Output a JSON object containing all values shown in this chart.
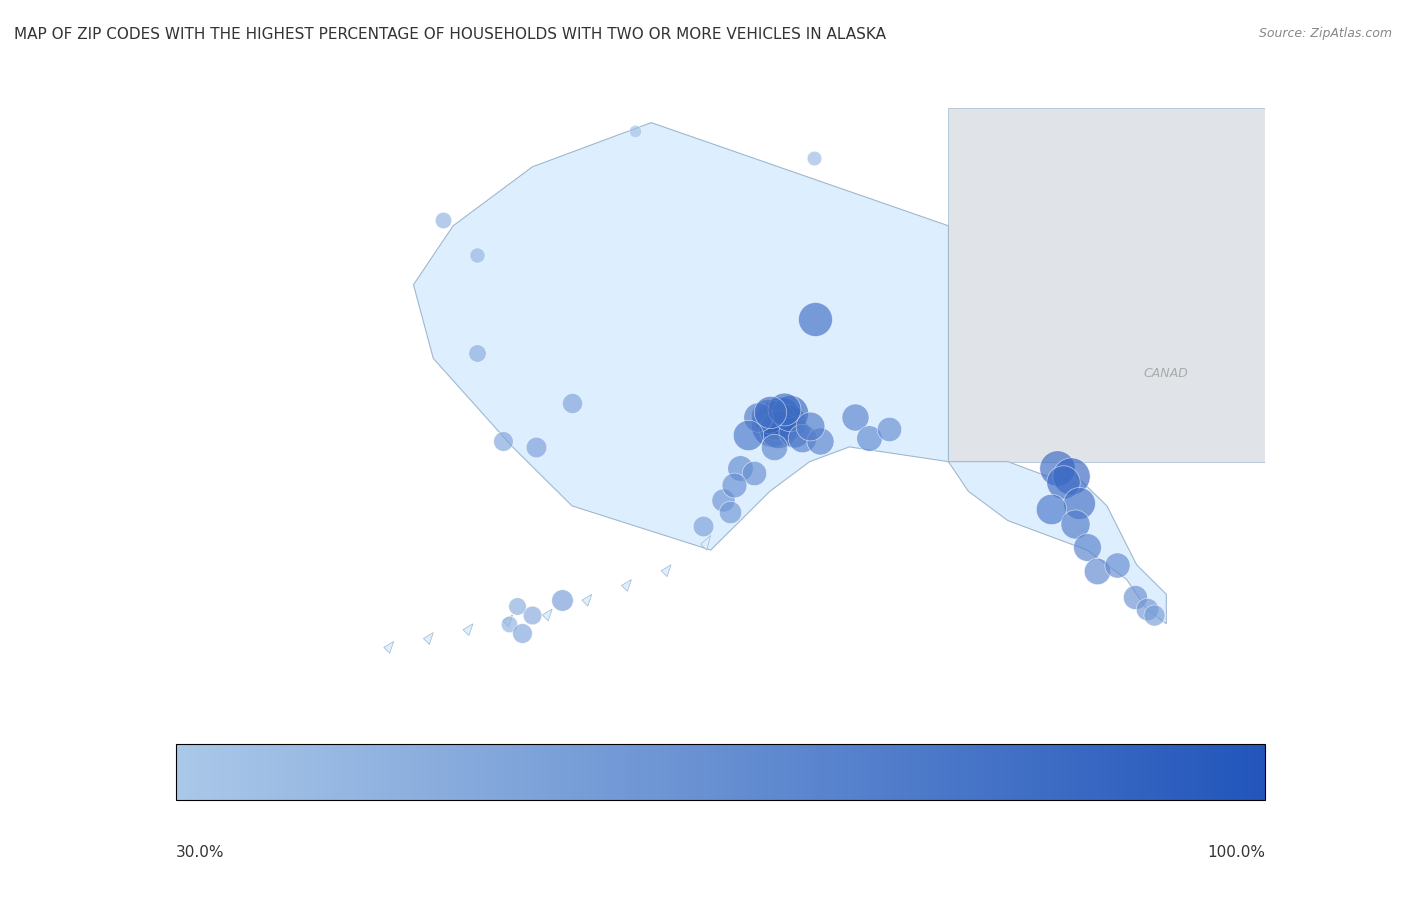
{
  "title": "MAP OF ZIP CODES WITH THE HIGHEST PERCENTAGE OF HOUSEHOLDS WITH TWO OR MORE VEHICLES IN ALASKA",
  "source": "Source: ZipAtlas.com",
  "colorbar_min": 30.0,
  "colorbar_max": 100.0,
  "colorbar_label_min": "30.0%",
  "colorbar_label_max": "100.0%",
  "bg_color": "#f0f4f8",
  "map_fill_color": "#ddeeff",
  "map_edge_color": "#a0b8cc",
  "ocean_color": "#dde8f0",
  "title_fontsize": 11,
  "source_fontsize": 9,
  "bubble_color_low": "#aac8e8",
  "bubble_color_high": "#2255bb",
  "bubbles": [
    {
      "lon": -147.72,
      "lat": 64.84,
      "pct": 85,
      "size": 600
    },
    {
      "lon": -149.9,
      "lat": 61.22,
      "pct": 95,
      "size": 900
    },
    {
      "lon": -149.44,
      "lat": 61.59,
      "pct": 90,
      "size": 700
    },
    {
      "lon": -149.1,
      "lat": 61.35,
      "pct": 88,
      "size": 650
    },
    {
      "lon": -149.75,
      "lat": 61.4,
      "pct": 92,
      "size": 800
    },
    {
      "lon": -150.1,
      "lat": 61.55,
      "pct": 87,
      "size": 600
    },
    {
      "lon": -149.6,
      "lat": 61.1,
      "pct": 93,
      "size": 750
    },
    {
      "lon": -148.8,
      "lat": 61.0,
      "pct": 82,
      "size": 500
    },
    {
      "lon": -149.0,
      "lat": 61.65,
      "pct": 89,
      "size": 680
    },
    {
      "lon": -150.6,
      "lat": 61.5,
      "pct": 78,
      "size": 450
    },
    {
      "lon": -151.1,
      "lat": 60.9,
      "pct": 80,
      "size": 480
    },
    {
      "lon": -148.4,
      "lat": 60.8,
      "pct": 75,
      "size": 420
    },
    {
      "lon": -149.3,
      "lat": 61.8,
      "pct": 86,
      "size": 560
    },
    {
      "lon": -150.0,
      "lat": 61.7,
      "pct": 84,
      "size": 540
    },
    {
      "lon": -147.5,
      "lat": 60.7,
      "pct": 72,
      "size": 380
    },
    {
      "lon": -148.0,
      "lat": 61.2,
      "pct": 76,
      "size": 430
    },
    {
      "lon": -149.8,
      "lat": 60.5,
      "pct": 70,
      "size": 360
    },
    {
      "lon": -151.5,
      "lat": 59.8,
      "pct": 68,
      "size": 340
    },
    {
      "lon": -150.8,
      "lat": 59.6,
      "pct": 65,
      "size": 310
    },
    {
      "lon": -152.4,
      "lat": 58.7,
      "pct": 62,
      "size": 280
    },
    {
      "lon": -151.8,
      "lat": 59.2,
      "pct": 66,
      "size": 320
    },
    {
      "lon": -152.0,
      "lat": 58.3,
      "pct": 60,
      "size": 260
    },
    {
      "lon": -153.4,
      "lat": 57.8,
      "pct": 55,
      "size": 220
    },
    {
      "lon": -162.0,
      "lat": 54.8,
      "pct": 50,
      "size": 180
    },
    {
      "lon": -162.8,
      "lat": 55.1,
      "pct": 48,
      "size": 160
    },
    {
      "lon": -163.2,
      "lat": 54.5,
      "pct": 45,
      "size": 140
    },
    {
      "lon": -162.5,
      "lat": 54.2,
      "pct": 52,
      "size": 200
    },
    {
      "lon": -160.5,
      "lat": 55.3,
      "pct": 58,
      "size": 240
    },
    {
      "lon": -161.8,
      "lat": 60.5,
      "pct": 55,
      "size": 220
    },
    {
      "lon": -163.5,
      "lat": 60.7,
      "pct": 52,
      "size": 200
    },
    {
      "lon": -164.8,
      "lat": 63.7,
      "pct": 48,
      "size": 160
    },
    {
      "lon": -160.0,
      "lat": 62.0,
      "pct": 53,
      "size": 210
    },
    {
      "lon": -145.7,
      "lat": 61.5,
      "pct": 72,
      "size": 380
    },
    {
      "lon": -145.0,
      "lat": 60.8,
      "pct": 68,
      "size": 340
    },
    {
      "lon": -144.0,
      "lat": 61.1,
      "pct": 65,
      "size": 310
    },
    {
      "lon": -135.5,
      "lat": 59.8,
      "pct": 88,
      "size": 650
    },
    {
      "lon": -134.8,
      "lat": 59.5,
      "pct": 91,
      "size": 720
    },
    {
      "lon": -135.2,
      "lat": 59.3,
      "pct": 86,
      "size": 580
    },
    {
      "lon": -134.4,
      "lat": 58.6,
      "pct": 83,
      "size": 530
    },
    {
      "lon": -135.8,
      "lat": 58.4,
      "pct": 80,
      "size": 480
    },
    {
      "lon": -134.6,
      "lat": 57.9,
      "pct": 77,
      "size": 440
    },
    {
      "lon": -134.0,
      "lat": 57.1,
      "pct": 74,
      "size": 400
    },
    {
      "lon": -133.5,
      "lat": 56.3,
      "pct": 70,
      "size": 360
    },
    {
      "lon": -132.5,
      "lat": 56.5,
      "pct": 67,
      "size": 330
    },
    {
      "lon": -131.6,
      "lat": 55.4,
      "pct": 64,
      "size": 300
    },
    {
      "lon": -131.0,
      "lat": 55.0,
      "pct": 60,
      "size": 260
    },
    {
      "lon": -130.6,
      "lat": 54.8,
      "pct": 57,
      "size": 230
    },
    {
      "lon": -166.5,
      "lat": 68.2,
      "pct": 45,
      "size": 140
    },
    {
      "lon": -156.8,
      "lat": 71.2,
      "pct": 35,
      "size": 80
    },
    {
      "lon": -147.8,
      "lat": 70.3,
      "pct": 40,
      "size": 110
    },
    {
      "lon": -164.8,
      "lat": 67.0,
      "pct": 42,
      "size": 120
    }
  ]
}
